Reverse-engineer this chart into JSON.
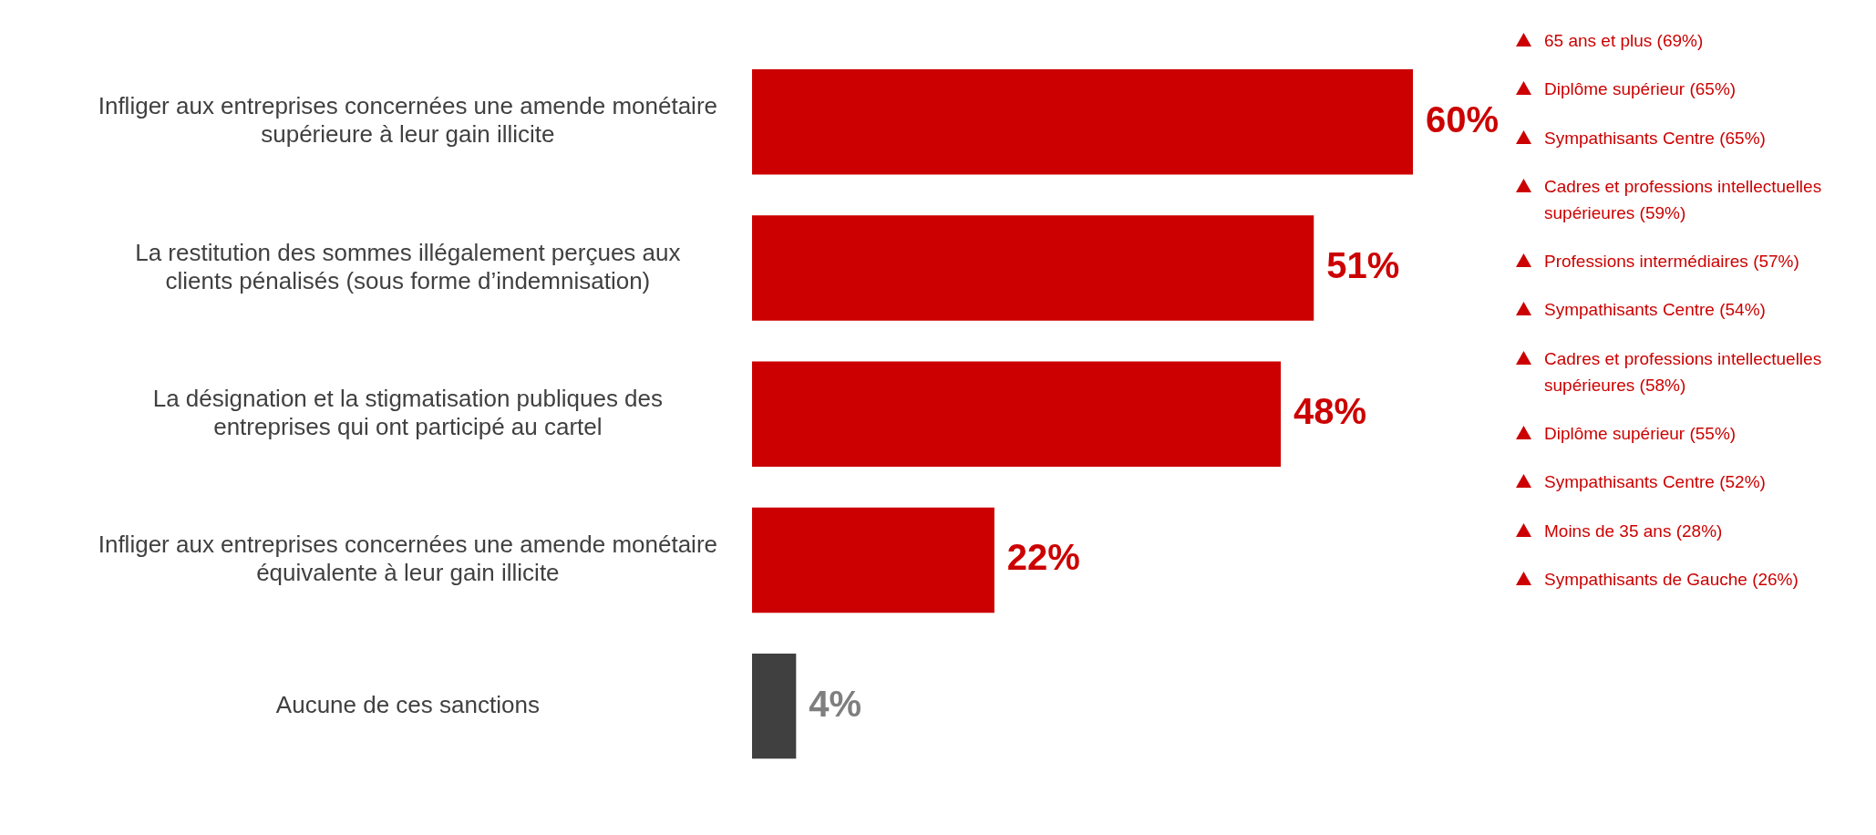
{
  "chart_data": {
    "type": "bar",
    "orientation": "horizontal",
    "categories": [
      "Infliger aux entreprises concernées une amende monétaire supérieure à leur gain illicite",
      "La restitution des sommes illégalement perçues aux clients pénalisés (sous forme d’indemnisation)",
      "La désignation et la stigmatisation publiques des entreprises qui ont participé au cartel",
      "Infliger aux entreprises concernées une amende monétaire équivalente à leur gain illicite",
      "Aucune de ces sanctions"
    ],
    "values": [
      60,
      51,
      48,
      22,
      4
    ],
    "colors": [
      "#cc0000",
      "#cc0000",
      "#cc0000",
      "#cc0000",
      "#404040"
    ],
    "value_labels": [
      "60%",
      "51%",
      "48%",
      "22%",
      "4%"
    ],
    "tick_labels": "y",
    "legend": false,
    "annotations": [
      "65 ans et plus (69%)",
      "Diplôme supérieur (65%)",
      "Sympathisants Centre (65%)",
      "Cadres et professions intellectuelles supérieures (59%)",
      "Professions intermédiaires (57%)",
      "Sympathisants Centre (54%)",
      "Cadres et professions intellectuelles supérieures (58%)",
      "Diplôme supérieur (55%)",
      "Sympathisants Centre (52%)",
      "Moins de 35 ans (28%)",
      "Sympathisants de Gauche (26%)"
    ]
  }
}
